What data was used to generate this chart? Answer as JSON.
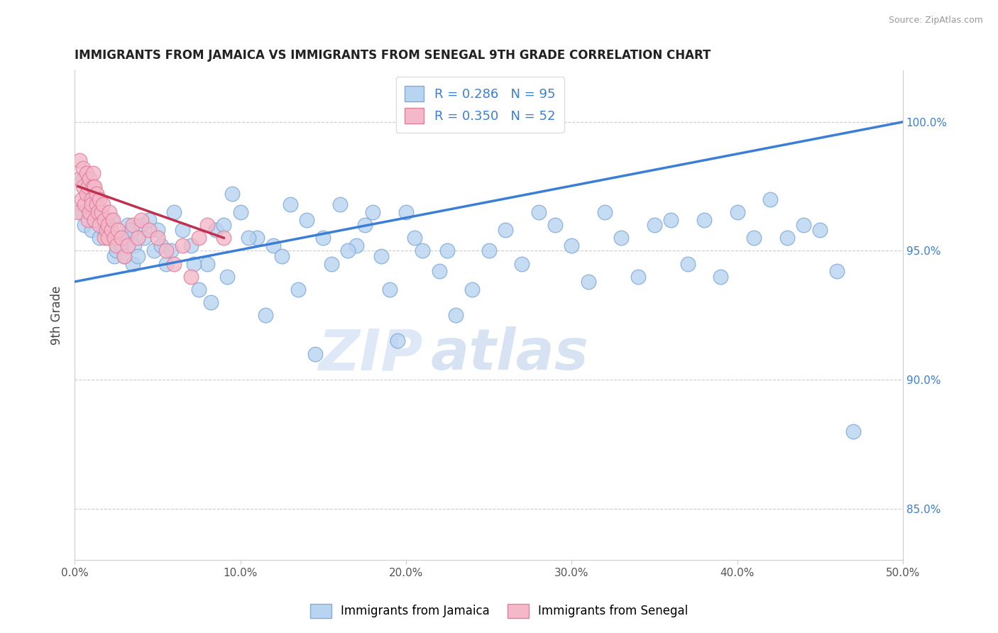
{
  "title": "IMMIGRANTS FROM JAMAICA VS IMMIGRANTS FROM SENEGAL 9TH GRADE CORRELATION CHART",
  "source": "Source: ZipAtlas.com",
  "ylabel": "9th Grade",
  "xlim": [
    0.0,
    50.0
  ],
  "ylim": [
    83.0,
    102.0
  ],
  "xticks": [
    0.0,
    10.0,
    20.0,
    30.0,
    40.0,
    50.0
  ],
  "yticks": [
    85.0,
    90.0,
    95.0,
    100.0
  ],
  "ytick_labels": [
    "85.0%",
    "90.0%",
    "95.0%",
    "100.0%"
  ],
  "xtick_labels": [
    "0.0%",
    "10.0%",
    "20.0%",
    "30.0%",
    "40.0%",
    "50.0%"
  ],
  "jamaica_color": "#b8d4f0",
  "jamaica_edge": "#80aad8",
  "senegal_color": "#f4b8c8",
  "senegal_edge": "#e080a0",
  "r_jamaica": 0.286,
  "n_jamaica": 95,
  "r_senegal": 0.35,
  "n_senegal": 52,
  "trend_jamaica_color": "#3a7fd5",
  "trend_senegal_color": "#c03050",
  "watermark_zip": "ZIP",
  "watermark_atlas": "atlas",
  "jamaica_x": [
    0.4,
    0.5,
    0.6,
    0.8,
    0.9,
    1.0,
    1.1,
    1.2,
    1.4,
    1.5,
    1.6,
    1.8,
    2.0,
    2.1,
    2.2,
    2.4,
    2.5,
    2.6,
    2.8,
    3.0,
    3.1,
    3.2,
    3.4,
    3.5,
    3.6,
    3.8,
    4.0,
    4.2,
    4.5,
    4.8,
    5.0,
    5.2,
    5.5,
    5.8,
    6.0,
    6.5,
    7.0,
    7.5,
    8.0,
    8.5,
    9.0,
    9.5,
    10.0,
    11.0,
    12.0,
    13.0,
    14.0,
    15.0,
    16.0,
    17.0,
    18.0,
    19.0,
    20.0,
    21.0,
    22.0,
    23.0,
    24.0,
    25.0,
    26.0,
    27.0,
    28.0,
    29.0,
    30.0,
    31.0,
    32.0,
    33.0,
    34.0,
    35.0,
    36.0,
    37.0,
    38.0,
    39.0,
    40.0,
    41.0,
    42.0,
    43.0,
    44.0,
    45.0,
    46.0,
    47.0,
    7.2,
    8.2,
    9.2,
    10.5,
    11.5,
    12.5,
    13.5,
    14.5,
    15.5,
    16.5,
    17.5,
    18.5,
    19.5,
    20.5,
    22.5
  ],
  "jamaica_y": [
    96.5,
    97.8,
    96.0,
    96.5,
    97.2,
    95.8,
    96.2,
    97.0,
    96.8,
    95.5,
    96.3,
    95.8,
    96.0,
    95.5,
    96.2,
    94.8,
    95.0,
    95.5,
    95.2,
    94.8,
    95.5,
    96.0,
    95.8,
    94.5,
    95.2,
    94.8,
    96.0,
    95.5,
    96.2,
    95.0,
    95.8,
    95.2,
    94.5,
    95.0,
    96.5,
    95.8,
    95.2,
    93.5,
    94.5,
    95.8,
    96.0,
    97.2,
    96.5,
    95.5,
    95.2,
    96.8,
    96.2,
    95.5,
    96.8,
    95.2,
    96.5,
    93.5,
    96.5,
    95.0,
    94.2,
    92.5,
    93.5,
    95.0,
    95.8,
    94.5,
    96.5,
    96.0,
    95.2,
    93.8,
    96.5,
    95.5,
    94.0,
    96.0,
    96.2,
    94.5,
    96.2,
    94.0,
    96.5,
    95.5,
    97.0,
    95.5,
    96.0,
    95.8,
    94.2,
    88.0,
    94.5,
    93.0,
    94.0,
    95.5,
    92.5,
    94.8,
    93.5,
    91.0,
    94.5,
    95.0,
    96.0,
    94.8,
    91.5,
    95.5,
    95.0
  ],
  "senegal_x": [
    0.2,
    0.3,
    0.3,
    0.4,
    0.5,
    0.5,
    0.6,
    0.7,
    0.7,
    0.8,
    0.8,
    0.9,
    0.9,
    1.0,
    1.0,
    1.1,
    1.1,
    1.2,
    1.2,
    1.3,
    1.3,
    1.4,
    1.5,
    1.5,
    1.6,
    1.7,
    1.8,
    1.8,
    1.9,
    2.0,
    2.0,
    2.1,
    2.2,
    2.3,
    2.4,
    2.5,
    2.6,
    2.8,
    3.0,
    3.2,
    3.5,
    3.8,
    4.0,
    4.5,
    5.0,
    5.5,
    6.0,
    6.5,
    7.0,
    7.5,
    8.0,
    9.0
  ],
  "senegal_y": [
    96.5,
    97.8,
    98.5,
    97.0,
    98.2,
    97.5,
    96.8,
    97.2,
    98.0,
    97.5,
    96.2,
    97.8,
    96.5,
    97.0,
    96.8,
    97.5,
    98.0,
    96.2,
    97.5,
    96.8,
    97.2,
    96.5,
    97.0,
    96.0,
    96.5,
    96.8,
    95.5,
    96.2,
    95.8,
    96.0,
    95.5,
    96.5,
    95.8,
    96.2,
    95.5,
    95.2,
    95.8,
    95.5,
    94.8,
    95.2,
    96.0,
    95.5,
    96.2,
    95.8,
    95.5,
    95.0,
    94.5,
    95.2,
    94.0,
    95.5,
    96.0,
    95.5
  ],
  "jamaica_trend_x0": 0.0,
  "jamaica_trend_x1": 50.0,
  "jamaica_trend_y0": 93.8,
  "jamaica_trend_y1": 100.0,
  "senegal_trend_x0": 0.2,
  "senegal_trend_x1": 9.0,
  "senegal_trend_y0": 97.5,
  "senegal_trend_y1": 95.5
}
